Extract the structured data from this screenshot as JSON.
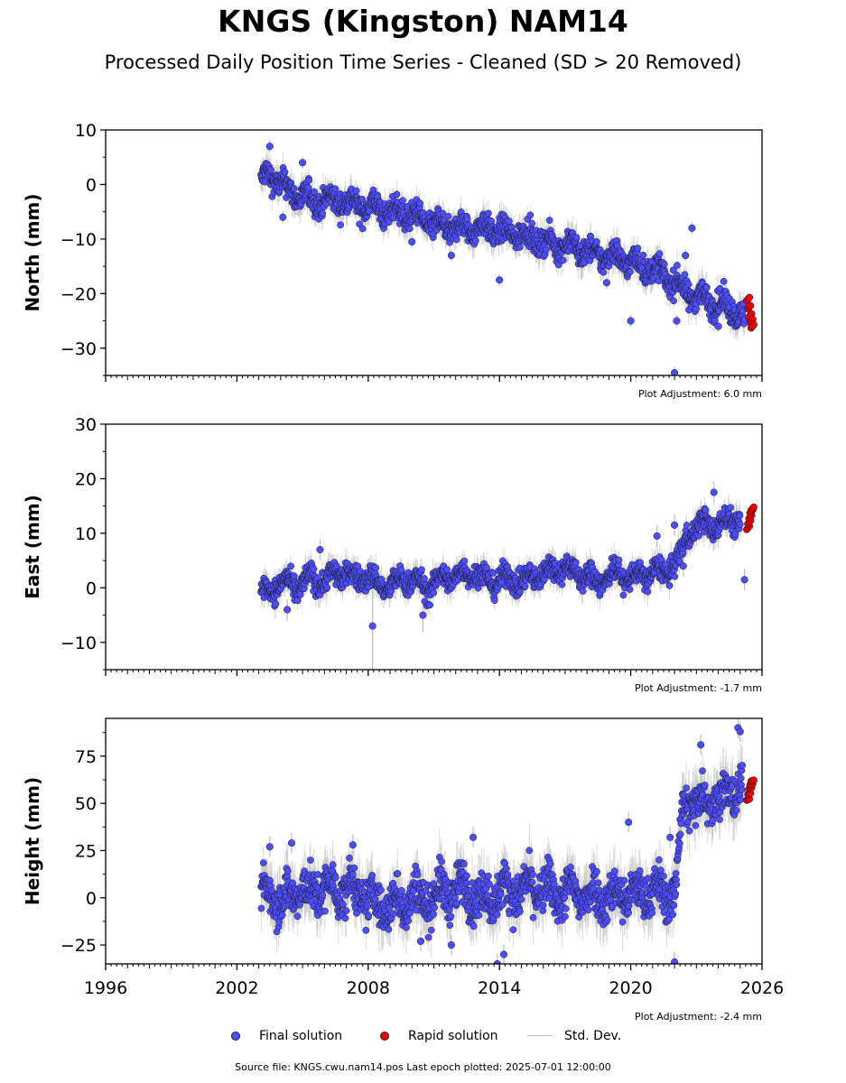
{
  "title": "KNGS (Kingston) NAM14",
  "subtitle": "Processed Daily Position Time Series - Cleaned (SD > 20 Removed)",
  "footer": "Source file: KNGS.cwu.nam14.pos  Last epoch plotted: 2025-07-01 12:00:00",
  "legend": {
    "final": "Final solution",
    "rapid": "Rapid solution",
    "std": "Std. Dev."
  },
  "colors": {
    "final": "#4d4dff",
    "rapid": "#ee0000",
    "std": "#bdbdbd",
    "edge": "#1a1a1a"
  },
  "chart_data": [
    {
      "type": "scatter",
      "ylabel": "North (mm)",
      "xlim": [
        1996,
        2026
      ],
      "ylim": [
        -35,
        10
      ],
      "yticks": [
        10,
        0,
        -10,
        -20,
        -30
      ],
      "adjustment": "Plot Adjustment: 6.0 mm",
      "series": [
        {
          "name": "Final solution",
          "x": [
            2003.1,
            2003.4,
            2003.8,
            2004.3,
            2004.8,
            2005.5,
            2006.3,
            2007.0,
            2007.6,
            2008.2,
            2008.8,
            2009.5,
            2010.2,
            2010.8,
            2011.5,
            2012.2,
            2012.9,
            2013.6,
            2014.3,
            2015.0,
            2015.7,
            2016.4,
            2017.1,
            2017.8,
            2018.5,
            2019.2,
            2019.9,
            2020.6,
            2021.3,
            2022.0,
            2022.7,
            2023.4,
            2024.1,
            2024.8,
            2025.2
          ],
          "y": [
            0,
            2,
            1,
            -1,
            -2,
            -3,
            -3,
            -3,
            -4,
            -4,
            -5,
            -5,
            -6,
            -7,
            -8,
            -8,
            -8,
            -8,
            -9,
            -9,
            -10,
            -11,
            -11,
            -12,
            -13,
            -13,
            -14,
            -15,
            -16,
            -18,
            -20,
            -21,
            -22,
            -23,
            -25
          ],
          "spread": 2.2
        },
        {
          "name": "Rapid solution",
          "x": [
            2025.3,
            2025.35,
            2025.4,
            2025.45,
            2025.5
          ],
          "y": [
            -21,
            -22.5,
            -24,
            -25,
            -26
          ]
        }
      ],
      "outliers": {
        "x": [
          2003.5,
          2004.1,
          2005.0,
          2010.0,
          2011.8,
          2014.0,
          2018.9,
          2020.0,
          2022.0,
          2022.5,
          2022.8,
          2024.0,
          2022.1
        ],
        "y": [
          7,
          -6,
          4,
          -10.5,
          -13,
          -17.5,
          -18,
          -25,
          -34.5,
          -13,
          -8,
          -26,
          -25
        ]
      }
    },
    {
      "type": "scatter",
      "ylabel": "East (mm)",
      "xlim": [
        1996,
        2026
      ],
      "ylim": [
        -15,
        30
      ],
      "yticks": [
        30,
        20,
        10,
        0,
        -10
      ],
      "adjustment": "Plot Adjustment: -1.7 mm",
      "series": [
        {
          "name": "Final solution",
          "x": [
            2003.1,
            2003.6,
            2004.2,
            2004.8,
            2005.4,
            2006.0,
            2006.6,
            2007.2,
            2007.8,
            2008.4,
            2009.0,
            2009.6,
            2010.2,
            2010.8,
            2011.4,
            2012.0,
            2012.6,
            2013.2,
            2013.8,
            2014.4,
            2015.0,
            2015.6,
            2016.2,
            2016.8,
            2017.4,
            2018.0,
            2018.6,
            2019.2,
            2019.8,
            2020.4,
            2021.0,
            2021.6,
            2022.2,
            2022.6,
            2023.0,
            2023.5,
            2024.0,
            2024.5,
            2025.0
          ],
          "y": [
            -1,
            0,
            1,
            0,
            2,
            1,
            3,
            2,
            2,
            1,
            0,
            2,
            1,
            0,
            2,
            2,
            3,
            2,
            1,
            2,
            1,
            2,
            3,
            4,
            3,
            2,
            1,
            3,
            2,
            2,
            3,
            3,
            5,
            10,
            11,
            12,
            11,
            13,
            12
          ],
          "spread": 2.0
        },
        {
          "name": "Rapid solution",
          "x": [
            2025.3,
            2025.35,
            2025.4,
            2025.45,
            2025.5
          ],
          "y": [
            11,
            12,
            13,
            14,
            14.5
          ]
        }
      ],
      "outliers": {
        "x": [
          2005.8,
          2008.2,
          2010.5,
          2004.3,
          2021.2,
          2022.0,
          2023.8,
          2025.2,
          2022.4
        ],
        "y": [
          7,
          -7,
          -5,
          -4,
          9.5,
          11.5,
          17.5,
          1.5,
          4
        ],
        "err": [
          2,
          8,
          3,
          2,
          2,
          2,
          2,
          2,
          2
        ]
      }
    },
    {
      "type": "scatter",
      "ylabel": "Height (mm)",
      "xlim": [
        1996,
        2026
      ],
      "ylim": [
        -35,
        95
      ],
      "yticks": [
        75,
        50,
        25,
        0,
        -25
      ],
      "xticks": [
        1996,
        2002,
        2008,
        2014,
        2020,
        2026
      ],
      "xlabel": "",
      "adjustment": "Plot Adjustment: -2.4 mm",
      "series": [
        {
          "name": "Final solution",
          "x": [
            2003.1,
            2003.6,
            2004.1,
            2004.7,
            2005.3,
            2005.9,
            2006.5,
            2007.1,
            2007.7,
            2008.3,
            2008.9,
            2009.5,
            2010.1,
            2010.7,
            2011.3,
            2011.9,
            2012.5,
            2013.1,
            2013.7,
            2014.3,
            2014.9,
            2015.5,
            2016.1,
            2016.7,
            2017.3,
            2017.9,
            2018.5,
            2019.1,
            2019.7,
            2020.3,
            2020.9,
            2021.5,
            2022.0,
            2022.4,
            2022.8,
            2023.3,
            2023.8,
            2024.3,
            2024.8,
            2025.1
          ],
          "y": [
            0,
            5,
            -3,
            4,
            2,
            6,
            3,
            5,
            2,
            -3,
            -5,
            -2,
            1,
            -1,
            3,
            4,
            5,
            -2,
            2,
            4,
            3,
            6,
            4,
            2,
            3,
            1,
            2,
            0,
            3,
            1,
            4,
            2,
            3,
            48,
            52,
            50,
            55,
            52,
            58,
            60
          ],
          "spread": 11
        },
        {
          "name": "Rapid solution",
          "x": [
            2025.3,
            2025.35,
            2025.4,
            2025.45,
            2025.5
          ],
          "y": [
            52,
            55,
            58,
            60,
            62
          ]
        }
      ],
      "outliers": {
        "x": [
          2003.5,
          2004.5,
          2007.3,
          2012.8,
          2013.9,
          2014.2,
          2019.9,
          2021.8,
          2022.0,
          2023.2,
          2024.9,
          2025.0,
          2011.8,
          2010.4
        ],
        "y": [
          27,
          29,
          28,
          32,
          -35,
          -30,
          40,
          32,
          -34,
          81,
          90,
          88,
          -25,
          -23
        ]
      }
    }
  ]
}
